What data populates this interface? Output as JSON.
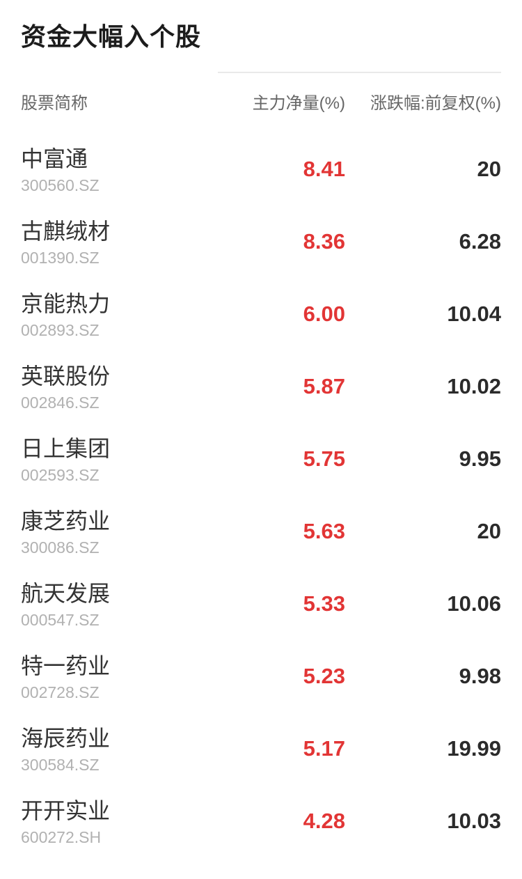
{
  "page": {
    "title": "资金大幅入个股",
    "colors": {
      "up_red": "#e23535",
      "value_dark": "#2b2b2b",
      "name_dark": "#333333",
      "code_gray": "#b1b1b1",
      "header_gray": "#666666",
      "title_black": "#1c1c1c",
      "divider_gray": "#e9e9e9",
      "background": "#ffffff"
    }
  },
  "table": {
    "headers": {
      "name": "股票简称",
      "main_net": "主力净量(%)",
      "change": "涨跌幅:前复权(%)"
    },
    "rows": [
      {
        "name": "中富通",
        "code": "300560.SZ",
        "main_net": "8.41",
        "change": "20"
      },
      {
        "name": "古麒绒材",
        "code": "001390.SZ",
        "main_net": "8.36",
        "change": "6.28"
      },
      {
        "name": "京能热力",
        "code": "002893.SZ",
        "main_net": "6.00",
        "change": "10.04"
      },
      {
        "name": "英联股份",
        "code": "002846.SZ",
        "main_net": "5.87",
        "change": "10.02"
      },
      {
        "name": "日上集团",
        "code": "002593.SZ",
        "main_net": "5.75",
        "change": "9.95"
      },
      {
        "name": "康芝药业",
        "code": "300086.SZ",
        "main_net": "5.63",
        "change": "20"
      },
      {
        "name": "航天发展",
        "code": "000547.SZ",
        "main_net": "5.33",
        "change": "10.06"
      },
      {
        "name": "特一药业",
        "code": "002728.SZ",
        "main_net": "5.23",
        "change": "9.98"
      },
      {
        "name": "海辰药业",
        "code": "300584.SZ",
        "main_net": "5.17",
        "change": "19.99"
      },
      {
        "name": "开开实业",
        "code": "600272.SH",
        "main_net": "4.28",
        "change": "10.03"
      }
    ]
  }
}
